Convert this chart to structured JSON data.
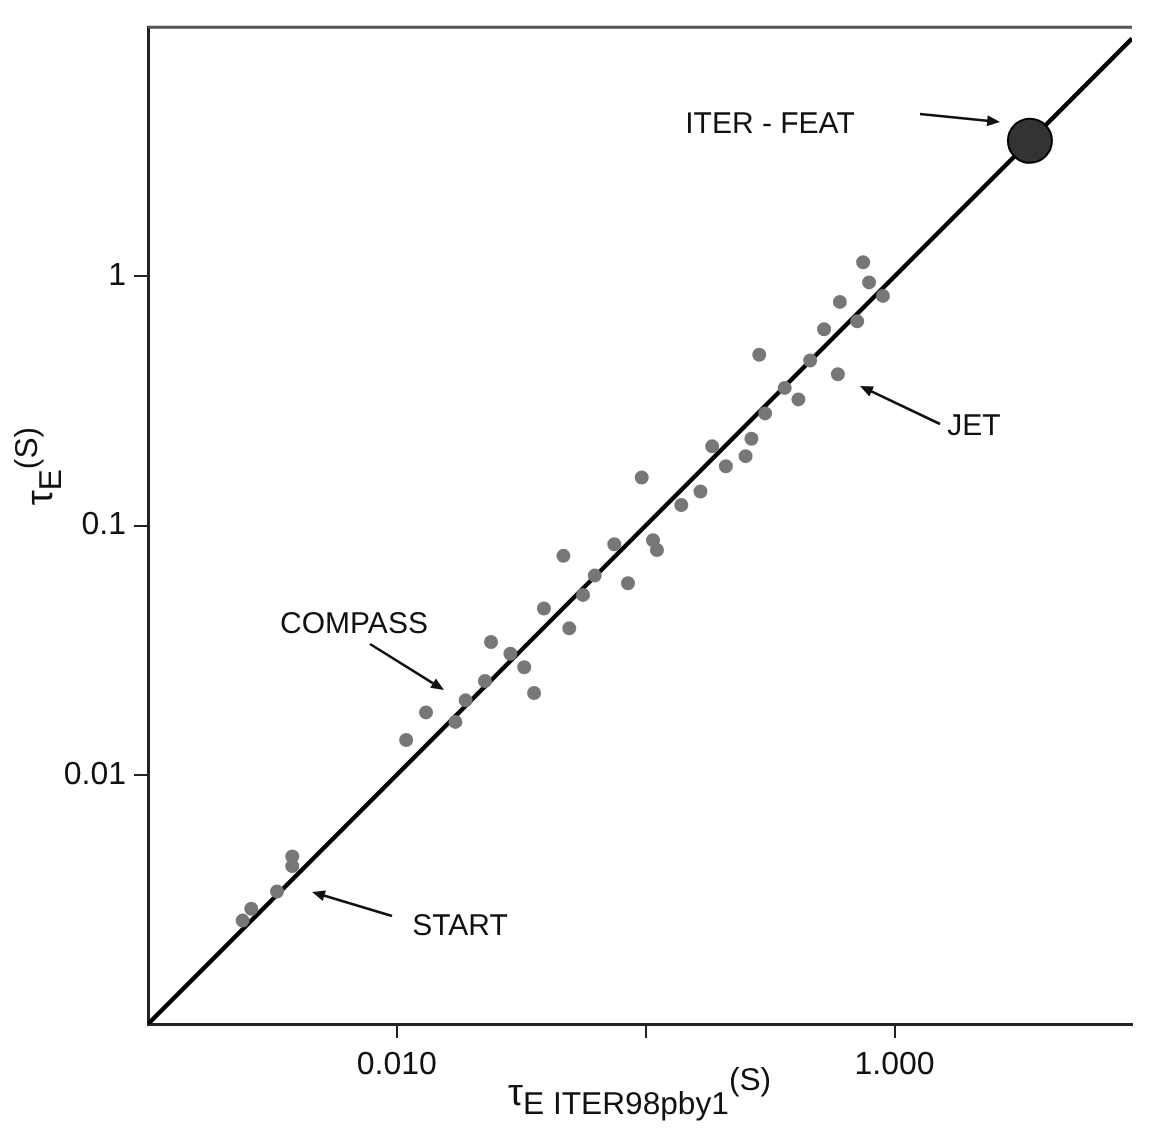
{
  "chart_data": {
    "type": "scatter",
    "xlabel": "τ$_{E ITER98pby1}$$^{(S)}$",
    "ylabel": "τ$_{E}$$^{(S)}$",
    "log": "xy",
    "grid": false,
    "legend": false,
    "marker": "circle",
    "xlim": [
      0.001,
      9
    ],
    "ylim": [
      0.001,
      10
    ],
    "xticks": [
      {
        "value": 0.01,
        "label": "0.010"
      },
      {
        "value": 0.1,
        "label": null
      },
      {
        "value": 1,
        "label": "1.000"
      }
    ],
    "yticks": [
      0.01,
      0.1,
      1
    ],
    "series": [
      {
        "color": "#777777",
        "x": [
          0.0024,
          0.0026,
          0.0033,
          0.0038,
          0.0038,
          0.0109,
          0.0131,
          0.0172,
          0.0189,
          0.0226,
          0.0239,
          0.0286,
          0.0325,
          0.0356,
          0.039,
          0.0467,
          0.0493,
          0.056,
          0.0624,
          0.0748,
          0.0849,
          0.0964,
          0.111,
          0.107,
          0.139,
          0.166,
          0.185,
          0.21,
          0.266,
          0.252,
          0.302,
          0.362,
          0.411,
          0.458,
          0.521,
          0.592,
          0.603,
          0.708,
          0.79,
          0.748,
          0.898,
          0.286
        ],
        "values": [
          0.0026,
          0.0029,
          0.0034,
          0.0047,
          0.0043,
          0.0138,
          0.0178,
          0.0163,
          0.0199,
          0.0238,
          0.0341,
          0.0306,
          0.027,
          0.0213,
          0.0465,
          0.0756,
          0.0387,
          0.0527,
          0.063,
          0.0842,
          0.0587,
          0.156,
          0.0798,
          0.0873,
          0.121,
          0.137,
          0.208,
          0.173,
          0.223,
          0.19,
          0.282,
          0.357,
          0.321,
          0.46,
          0.614,
          0.405,
          0.79,
          0.66,
          0.946,
          1.14,
          0.835,
          0.485
        ]
      },
      {
        "type": "line",
        "color": "#000000",
        "marker": "none",
        "line_style": "solid",
        "x": [
          0.001,
          9
        ],
        "values": [
          0.001,
          9
        ]
      },
      {
        "color": "#333333",
        "x": [
          3.5
        ],
        "values": [
          3.5
        ]
      }
    ],
    "annotations": [
      "ITER - FEAT",
      "JET",
      "COMPASS",
      "START"
    ]
  }
}
